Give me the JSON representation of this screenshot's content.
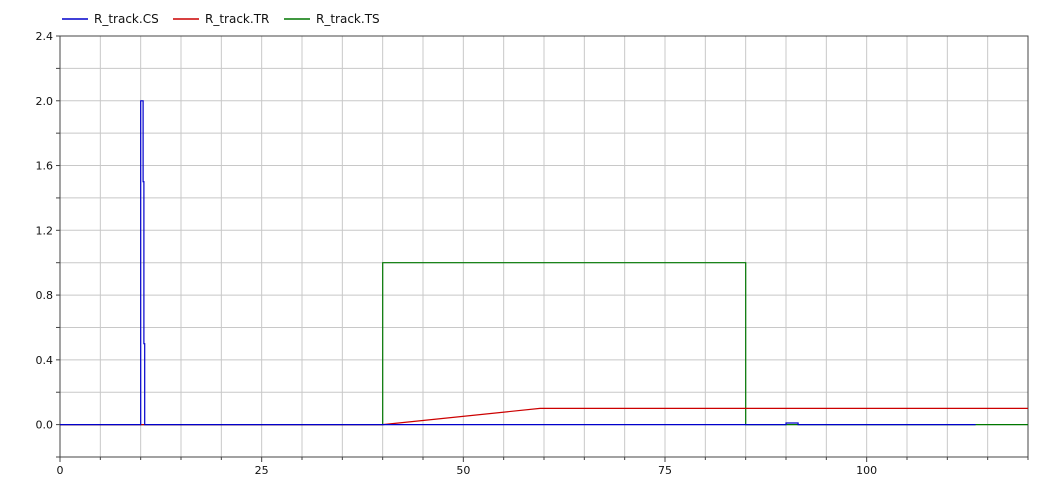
{
  "chart_data": {
    "type": "line",
    "title": "",
    "xlabel": "",
    "ylabel": "",
    "xlim": [
      0,
      120
    ],
    "ylim": [
      -0.2,
      2.4
    ],
    "grid": true,
    "legend_placement": "top-left",
    "x_ticks": [
      0,
      25,
      50,
      75,
      100
    ],
    "x_tick_labels": [
      "0",
      "25",
      "50",
      "75",
      "100"
    ],
    "y_ticks": [
      0.0,
      0.4,
      0.8,
      1.2,
      1.6,
      2.0,
      2.4
    ],
    "y_tick_labels": [
      "0.0",
      "0.4",
      "0.8",
      "1.2",
      "1.6",
      "2.0",
      "2.4"
    ],
    "series": [
      {
        "name": "R_track.CS",
        "color": "#0000cc",
        "x": [
          0,
          10.0,
          10.0,
          10.3,
          10.3,
          10.4,
          10.4,
          10.5,
          10.5,
          10.6,
          10.6,
          18.5,
          37.3,
          37.3,
          90.0,
          90.0,
          91.5,
          91.5,
          113.5
        ],
        "y": [
          0,
          0,
          2.0,
          2.0,
          1.5,
          1.5,
          0.5,
          0.5,
          0,
          0,
          0,
          0,
          0,
          0,
          0,
          0.01,
          0.01,
          0,
          0
        ]
      },
      {
        "name": "R_track.TR",
        "color": "#cc0000",
        "x": [
          0,
          40.0,
          59.5,
          120
        ],
        "y": [
          0,
          0,
          0.1,
          0.1
        ]
      },
      {
        "name": "R_track.TS",
        "color": "#007700",
        "x": [
          0,
          40.0,
          40.0,
          85.0,
          85.0,
          120
        ],
        "y": [
          0,
          0,
          1.0,
          1.0,
          0,
          0
        ]
      }
    ]
  }
}
